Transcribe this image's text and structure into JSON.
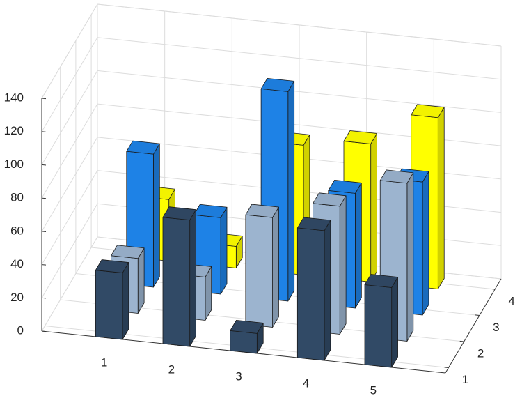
{
  "chart_data": {
    "type": "bar3",
    "xticks": [
      1,
      2,
      3,
      4,
      5
    ],
    "yticks": [
      1,
      2,
      3,
      4
    ],
    "zticks": [
      0,
      20,
      40,
      60,
      80,
      100,
      120,
      140
    ],
    "xlim": [
      0,
      6
    ],
    "ylim": [
      0.8,
      4.4
    ],
    "zlim": [
      0,
      140
    ],
    "grid": true,
    "series": [
      {
        "color": "#314a66",
        "values": [
          40,
          76,
          12,
          78,
          48
        ]
      },
      {
        "color": "#9cb4cf",
        "values": [
          33,
          26,
          66,
          77,
          95
        ]
      },
      {
        "color": "#1e82e6",
        "values": [
          80,
          46,
          126,
          69,
          80
        ]
      },
      {
        "color": "#ffff00",
        "values": [
          37,
          13,
          78,
          83,
          103
        ]
      }
    ]
  }
}
